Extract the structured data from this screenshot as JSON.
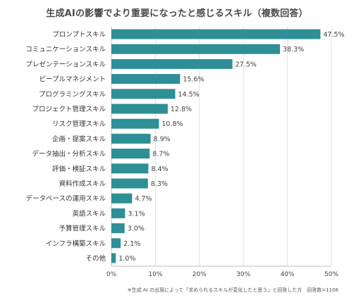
{
  "chart_data": {
    "type": "bar",
    "orientation": "horizontal",
    "title": "生成AIの影響でより重要になったと感じるスキル（複数回答）",
    "categories": [
      "プロンプトスキル",
      "コミュニケーションスキル",
      "プレゼンテーションスキル",
      "ピープルマネジメント",
      "プログラミングスキル",
      "プロジェクト管理スキル",
      "リスク管理スキル",
      "企画・提案スキル",
      "データ抽出・分析スキル",
      "評価・検証スキル",
      "資料作成スキル",
      "データベースの運用スキル",
      "英語スキル",
      "予算管理スキル",
      "インフラ構築スキル",
      "その他"
    ],
    "values": [
      47.5,
      38.3,
      27.5,
      15.6,
      14.5,
      12.8,
      10.8,
      8.9,
      8.7,
      8.4,
      8.3,
      4.7,
      3.1,
      3.0,
      2.1,
      1.0
    ],
    "value_labels": [
      "47.5%",
      "38.3%",
      "27.5%",
      "15.6%",
      "14.5%",
      "12.8%",
      "10.8%",
      "8.9%",
      "8.7%",
      "8.4%",
      "8.3%",
      "4.7%",
      "3.1%",
      "3.0%",
      "2.1%",
      "1.0%"
    ],
    "xlim": [
      0,
      50
    ],
    "x_ticks": [
      "0%",
      "10%",
      "20%",
      "30%",
      "40%",
      "50%"
    ],
    "grid": true,
    "bar_color": "#2e8f96",
    "note": "※生成 AI の出現によって「求められるスキルが変化したと思う」と回答した方　回答数=1106"
  }
}
